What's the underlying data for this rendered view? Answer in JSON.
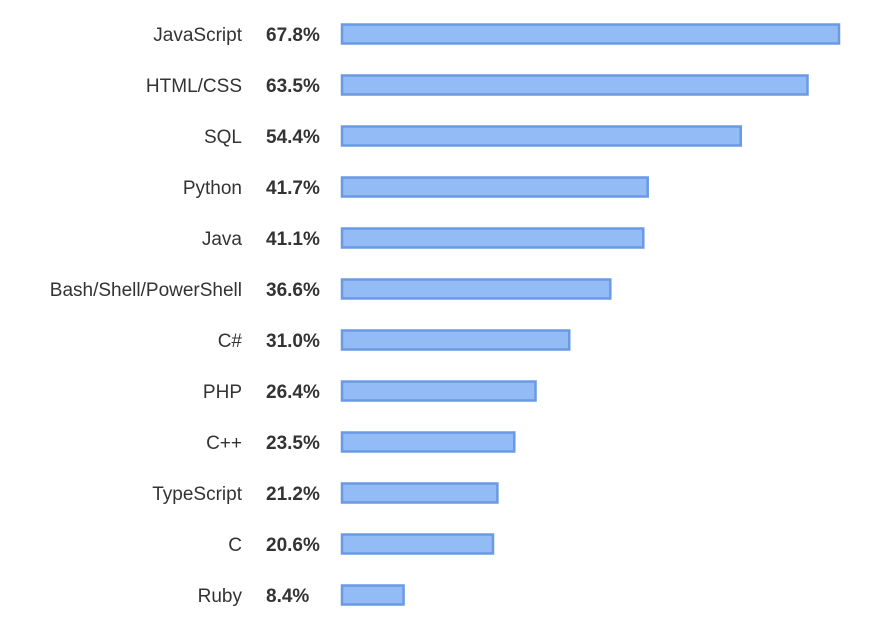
{
  "chart_data": {
    "type": "bar",
    "orientation": "horizontal",
    "categories": [
      "JavaScript",
      "HTML/CSS",
      "SQL",
      "Python",
      "Java",
      "Bash/Shell/PowerShell",
      "C#",
      "PHP",
      "C++",
      "TypeScript",
      "C",
      "Ruby"
    ],
    "values": [
      67.8,
      63.5,
      54.4,
      41.7,
      41.1,
      36.6,
      31.0,
      26.4,
      23.5,
      21.2,
      20.6,
      8.4
    ],
    "value_labels": [
      "67.8%",
      "63.5%",
      "54.4%",
      "41.7%",
      "41.1%",
      "36.6%",
      "31.0%",
      "26.4%",
      "23.5%",
      "21.2%",
      "20.6%",
      "8.4%"
    ],
    "unit": "%",
    "xlim": [
      0,
      67.8
    ],
    "grid": false,
    "legend": "none",
    "colors": {
      "bar_fill": "#93bbf5",
      "bar_stroke": "#6a9ae4",
      "label_text": "#333333"
    }
  }
}
